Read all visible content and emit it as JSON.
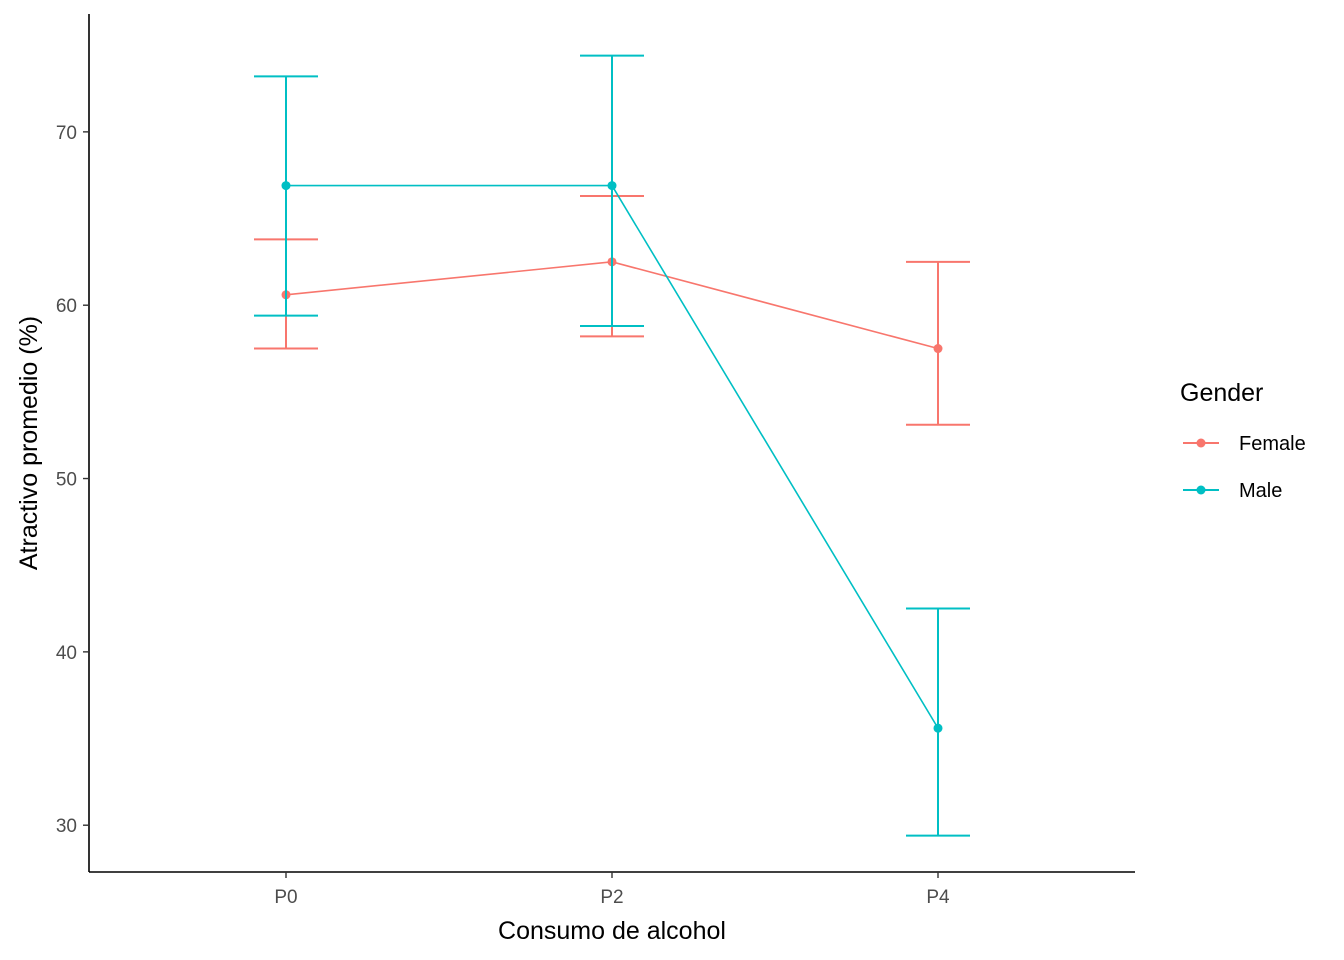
{
  "chart_data": {
    "type": "line",
    "xlabel": "Consumo de alcohol",
    "ylabel": "Atractivo promedio (%)",
    "categories": [
      "P0",
      "P2",
      "P4"
    ],
    "ylim": [
      27.3,
      76.8
    ],
    "yticks": [
      30,
      40,
      50,
      60,
      70
    ],
    "grid": false,
    "legend": {
      "title": "Gender",
      "position": "right"
    },
    "error_bars": true,
    "series": [
      {
        "name": "Female",
        "color": "#F8766D",
        "values": [
          60.6,
          62.5,
          57.5
        ],
        "lower": [
          57.5,
          58.2,
          53.1
        ],
        "upper": [
          63.8,
          66.3,
          62.5
        ]
      },
      {
        "name": "Male",
        "color": "#00BFC4",
        "values": [
          66.9,
          66.9,
          35.6
        ],
        "lower": [
          59.4,
          58.8,
          29.4
        ],
        "upper": [
          73.2,
          74.4,
          42.5
        ]
      }
    ]
  }
}
